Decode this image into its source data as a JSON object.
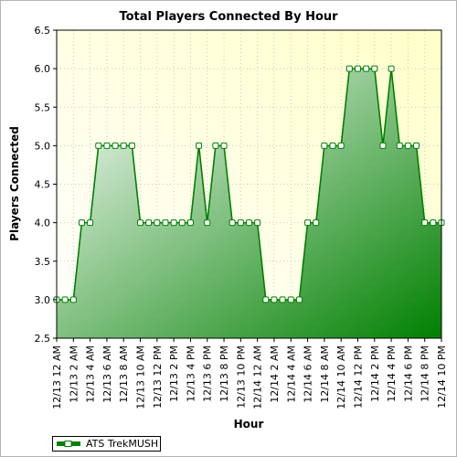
{
  "chart_data": {
    "type": "area",
    "title": "Total Players Connected By Hour",
    "xlabel": "Hour",
    "ylabel": "Players Connected",
    "ylim": [
      2.5,
      6.5
    ],
    "yticks": [
      "2.5",
      "3.0",
      "3.5",
      "4.0",
      "4.5",
      "5.0",
      "5.5",
      "6.0",
      "6.5"
    ],
    "xtick_labels": [
      "12/13 12 AM",
      "12/13 2 AM",
      "12/13 4 AM",
      "12/13 6 AM",
      "12/13 8 AM",
      "12/13 10 AM",
      "12/13 12 PM",
      "12/13 2 PM",
      "12/13 4 PM",
      "12/13 6 PM",
      "12/13 8 PM",
      "12/13 10 PM",
      "12/14 12 AM",
      "12/14 2 AM",
      "12/14 4 AM",
      "12/14 6 AM",
      "12/14 8 AM",
      "12/14 10 AM",
      "12/14 12 PM",
      "12/14 2 PM",
      "12/14 4 PM",
      "12/14 6 PM",
      "12/14 8 PM",
      "12/14 10 PM"
    ],
    "grid": true,
    "legend_placement": "bottom-left",
    "series": [
      {
        "name": "ATS TrekMUSH",
        "color": "#008000",
        "values": [
          3,
          3,
          3,
          4,
          4,
          5,
          5,
          5,
          5,
          5,
          4,
          4,
          4,
          4,
          4,
          4,
          4,
          5,
          4,
          5,
          5,
          4,
          4,
          4,
          4,
          3,
          3,
          3,
          3,
          3,
          4,
          4,
          5,
          5,
          5,
          6,
          6,
          6,
          6,
          5,
          6,
          5,
          5,
          5,
          4,
          4,
          4
        ]
      }
    ]
  }
}
